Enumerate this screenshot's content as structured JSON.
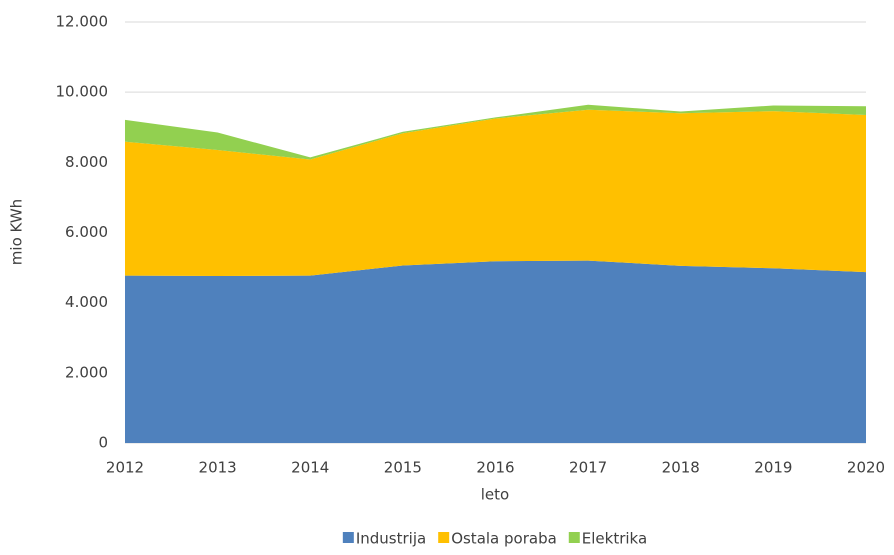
{
  "chart_data": {
    "type": "stacked_area",
    "x": [
      2012,
      2013,
      2014,
      2015,
      2016,
      2017,
      2018,
      2019,
      2020
    ],
    "xlim": [
      2012,
      2020
    ],
    "xticks": [
      2012,
      2013,
      2014,
      2015,
      2016,
      2017,
      2018,
      2019,
      2020
    ],
    "x_label": "leto",
    "y_label": "mio KWh",
    "ylim": [
      0,
      12000
    ],
    "yticks": [
      0,
      {
        "value": 2000,
        "label": "2.000"
      },
      {
        "value": 4000,
        "label": "4.000"
      },
      {
        "value": 6000,
        "label": "6.000"
      },
      {
        "value": 8000,
        "label": "8.000"
      },
      {
        "value": 10000,
        "label": "10.000"
      },
      {
        "value": 12000,
        "label": "12.000"
      }
    ],
    "grid": true,
    "legend": "bottom",
    "series": [
      {
        "name": "Industrija",
        "color": "#4f81bd",
        "values": [
          4770,
          4760,
          4770,
          5060,
          5180,
          5200,
          5050,
          4980,
          4870
        ]
      },
      {
        "name": "Ostala poraba",
        "color": "#ffc000",
        "values": [
          3820,
          3590,
          3310,
          3770,
          4070,
          4300,
          4350,
          4480,
          4480
        ]
      },
      {
        "name": "Elektrika",
        "color": "#92d050",
        "values": [
          620,
          500,
          60,
          40,
          30,
          140,
          50,
          160,
          250
        ]
      }
    ]
  }
}
